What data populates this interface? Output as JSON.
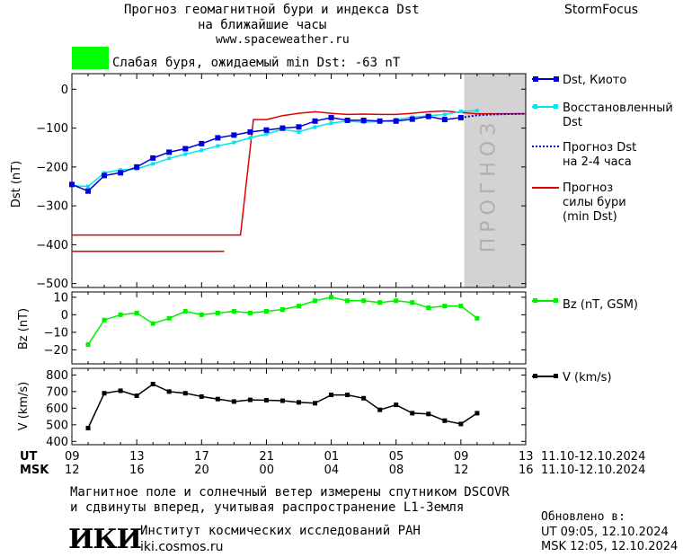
{
  "header": {
    "title_line1": "Прогноз геомагнитной бури и индекса Dst",
    "title_line2": "на ближайшие часы",
    "site": "www.spaceweather.ru",
    "brand": "StormFocus",
    "storm_status": "Слабая буря, ожидаемый min Dst: -63 nT",
    "storm_color": "#00ff00"
  },
  "legend": {
    "dst_kyoto": "Dst, Киото",
    "restored_1": "Восстановленный",
    "restored_2": "Dst",
    "forecast_1": "Прогноз Dst",
    "forecast_2": "на 2-4 часа",
    "storm_1": "Прогноз",
    "storm_2": "силы бури",
    "storm_3": "(min Dst)",
    "bz": "Bz (nT, GSM)",
    "v": "V (km/s)"
  },
  "forecast_label": "ПРОГНОЗ",
  "time_axis": {
    "ut_label": "UT",
    "msk_label": "MSK",
    "ut_ticks": [
      "09",
      "13",
      "17",
      "21",
      "01",
      "05",
      "09",
      "13"
    ],
    "msk_ticks": [
      "12",
      "16",
      "20",
      "00",
      "04",
      "08",
      "12",
      "16"
    ],
    "date_range_ut": "11.10-12.10.2024",
    "date_range_msk": "11.10-12.10.2024"
  },
  "footer": {
    "note_1": "Магнитное поле и солнечный ветер измерены спутником DSCOVR",
    "note_2": "и сдвинуты вперед, учитывая распространение L1-Земля",
    "logo_text": "ИКИ",
    "institute": "Институт космических исследований РАН",
    "institute_site": "iki.cosmos.ru",
    "updated_label": "Обновлено в:",
    "updated_ut": "UT  09:05, 12.10.2024",
    "updated_msk": "MSK 12:05, 12.10.2024"
  },
  "colors": {
    "dst_kyoto": "#0000dd",
    "dst_restored": "#00e5ee",
    "dst_forecast": "#0000cc",
    "storm_forecast": "#dd0000",
    "bz": "#00ee00",
    "v": "#000000",
    "forecast_zone": "#d3d3d3",
    "forecast_text": "#b0b0b0"
  },
  "chart_data": [
    {
      "type": "line",
      "ylabel": "Dst (nT)",
      "ylim": [
        -510,
        40
      ],
      "yticks": [
        0,
        -100,
        -200,
        -300,
        -400,
        -500
      ],
      "xlim_hours": [
        0,
        28
      ],
      "forecast_zone_hours": [
        24.2,
        28
      ],
      "series": [
        {
          "name": "Dst, Киото",
          "x": [
            0,
            1,
            2,
            3,
            4,
            5,
            6,
            7,
            8,
            9,
            10,
            11,
            12,
            13,
            14,
            15,
            16,
            17,
            18,
            19,
            20,
            21,
            22,
            23,
            24
          ],
          "y": [
            -245,
            -262,
            -222,
            -215,
            -200,
            -177,
            -162,
            -153,
            -140,
            -125,
            -118,
            -110,
            -105,
            -100,
            -97,
            -82,
            -73,
            -80,
            -80,
            -82,
            -82,
            -77,
            -70,
            -78,
            -73
          ]
        },
        {
          "name": "Восстановленный Dst",
          "x": [
            0,
            1,
            2,
            3,
            4,
            5,
            6,
            7,
            8,
            9,
            10,
            11,
            12,
            13,
            14,
            15,
            16,
            17,
            18,
            19,
            20,
            21,
            22,
            23,
            24,
            25
          ],
          "y": [
            -248,
            -250,
            -215,
            -208,
            -205,
            -192,
            -178,
            -167,
            -157,
            -146,
            -137,
            -125,
            -115,
            -103,
            -110,
            -97,
            -87,
            -82,
            -85,
            -83,
            -78,
            -72,
            -68,
            -65,
            -57,
            -55
          ]
        },
        {
          "name": "Прогноз Dst на 2-4 часа",
          "x": [
            24,
            25,
            26,
            27,
            28
          ],
          "y": [
            -73,
            -67,
            -65,
            -64,
            -63
          ]
        },
        {
          "name": "Прогноз силы бури (min Dst)",
          "segments": [
            {
              "x": [
                0,
                10.4,
                11.2,
                12,
                13,
                14,
                15,
                16,
                17,
                18,
                19,
                20,
                21,
                22,
                23,
                24,
                25,
                26,
                28
              ],
              "y": [
                -375,
                -375,
                -78,
                -78,
                -68,
                -62,
                -58,
                -62,
                -65,
                -64,
                -65,
                -65,
                -62,
                -58,
                -56,
                -60,
                -63,
                -63,
                -63
              ]
            },
            {
              "x": [
                0,
                9.4
              ],
              "y": [
                -417,
                -417
              ]
            }
          ]
        }
      ]
    },
    {
      "type": "line",
      "ylabel": "Bz (nT)",
      "ylim": [
        -28,
        13
      ],
      "yticks": [
        10,
        0,
        -10,
        -20
      ],
      "series": [
        {
          "name": "Bz (nT, GSM)",
          "x": [
            1,
            2,
            3,
            4,
            5,
            6,
            7,
            8,
            9,
            10,
            11,
            12,
            13,
            14,
            15,
            16,
            17,
            18,
            19,
            20,
            21,
            22,
            23,
            24,
            25
          ],
          "y": [
            -17,
            -3,
            0,
            1,
            -5,
            -2,
            2,
            0,
            1,
            2,
            1,
            2,
            3,
            5,
            8,
            10,
            8,
            8,
            7,
            8,
            7,
            4,
            5,
            5,
            -2
          ]
        }
      ]
    },
    {
      "type": "line",
      "ylabel": "V (km/s)",
      "ylim": [
        380,
        840
      ],
      "yticks": [
        800,
        700,
        600,
        500,
        400
      ],
      "series": [
        {
          "name": "V (km/s)",
          "x": [
            1,
            2,
            3,
            4,
            5,
            6,
            7,
            8,
            9,
            10,
            11,
            12,
            13,
            14,
            15,
            16,
            17,
            18,
            19,
            20,
            21,
            22,
            23,
            24,
            25
          ],
          "y": [
            480,
            690,
            705,
            675,
            745,
            700,
            690,
            670,
            655,
            640,
            650,
            648,
            645,
            635,
            630,
            680,
            680,
            660,
            590,
            620,
            570,
            565,
            525,
            505,
            570
          ]
        }
      ]
    }
  ]
}
